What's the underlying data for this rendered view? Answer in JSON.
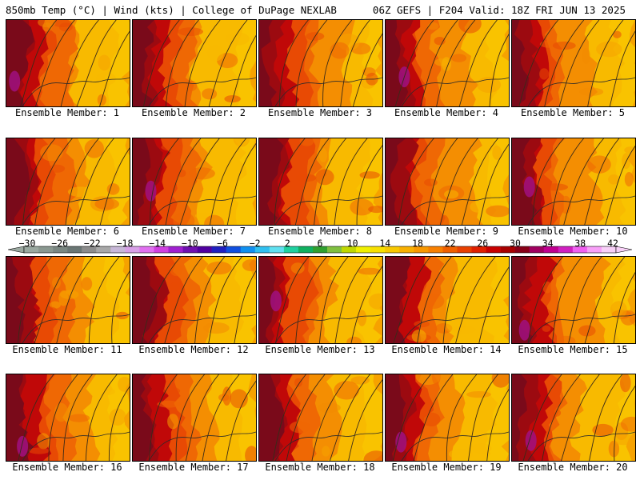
{
  "header": {
    "left": "850mb Temp (°C) | Wind (kts) | College of DuPage NEXLAB",
    "right": "06Z GEFS | F204 Valid: 18Z FRI JUN 13 2025"
  },
  "panels": [
    {
      "label": "Ensemble Member: 1"
    },
    {
      "label": "Ensemble Member: 2"
    },
    {
      "label": "Ensemble Member: 3"
    },
    {
      "label": "Ensemble Member: 4"
    },
    {
      "label": "Ensemble Member: 5"
    },
    {
      "label": "Ensemble Member: 6"
    },
    {
      "label": "Ensemble Member: 7"
    },
    {
      "label": "Ensemble Member: 8"
    },
    {
      "label": "Ensemble Member: 9"
    },
    {
      "label": "Ensemble Member: 10"
    },
    {
      "label": "Ensemble Member: 11"
    },
    {
      "label": "Ensemble Member: 12"
    },
    {
      "label": "Ensemble Member: 13"
    },
    {
      "label": "Ensemble Member: 14"
    },
    {
      "label": "Ensemble Member: 15"
    },
    {
      "label": "Ensemble Member: 16"
    },
    {
      "label": "Ensemble Member: 17"
    },
    {
      "label": "Ensemble Member: 18"
    },
    {
      "label": "Ensemble Member: 19"
    },
    {
      "label": "Ensemble Member: 20"
    }
  ],
  "colorbar": {
    "labels": [
      "−30",
      "−26",
      "−22",
      "−18",
      "−14",
      "−10",
      "−6",
      "−2",
      "2",
      "6",
      "10",
      "14",
      "18",
      "22",
      "26",
      "30",
      "34",
      "38",
      "42"
    ],
    "colors": [
      "#9aa8a0",
      "#8a9890",
      "#7a8782",
      "#6a7674",
      "#8c8c8c",
      "#a8a8a8",
      "#c8b8d8",
      "#d8a0e8",
      "#e070f0",
      "#d040e0",
      "#a020d0",
      "#7010b0",
      "#5000a0",
      "#2020c0",
      "#1050e0",
      "#1090f0",
      "#30c0f0",
      "#60e0f0",
      "#20d0a0",
      "#10b060",
      "#30a030",
      "#80c040",
      "#c0d800",
      "#f0f000",
      "#f8e000",
      "#f8c800",
      "#f8b000",
      "#f89800",
      "#f88000",
      "#f06000",
      "#e84000",
      "#e02000",
      "#c80000",
      "#a80000",
      "#880018",
      "#a00060",
      "#c00090",
      "#d020c0",
      "#f060f0",
      "#f8a0f8",
      "#f8d0f8"
    ]
  },
  "palette": {
    "hot": [
      "#7a0a1a",
      "#9c0a10",
      "#c00808",
      "#dd2a06",
      "#e84a04",
      "#ee6604",
      "#f38a02",
      "#f6a200",
      "#f8b800",
      "#f9cc00",
      "#fbe400"
    ],
    "line": "#3a2a18",
    "magenta": "#a01080"
  }
}
